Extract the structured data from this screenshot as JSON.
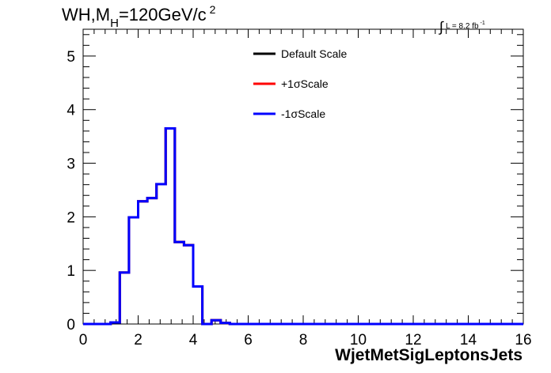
{
  "header": {
    "title_prefix": "WH,M",
    "title_subscript": "H",
    "title_value": "=120GeV/c",
    "title_superscript": "2",
    "lumi_text": "L = 8.2 fb",
    "lumi_superscript": "-1"
  },
  "chart_data": {
    "type": "line",
    "title": "WH,M_H=120GeV/c^2",
    "xlabel": "WjetMetSigLeptonsJets",
    "ylabel": "",
    "xlim": [
      0,
      16
    ],
    "ylim": [
      0,
      5.5
    ],
    "xticks": [
      0,
      2,
      4,
      6,
      8,
      10,
      12,
      14,
      16
    ],
    "yticks": [
      0,
      1,
      2,
      3,
      4,
      5
    ],
    "grid": false,
    "legend_position": "top-center",
    "bin_width": 0.3333,
    "series": [
      {
        "name": "Default Scale",
        "color": "#000000",
        "bin_edges": [
          0,
          1.0,
          1.3333,
          1.6667,
          2.0,
          2.3333,
          2.6667,
          3.0,
          3.3333,
          3.6667,
          4.0,
          4.3333,
          4.6667,
          5.0,
          5.3333,
          16
        ],
        "values": [
          0,
          0.03,
          0.96,
          1.99,
          2.29,
          2.35,
          2.61,
          3.65,
          1.53,
          1.47,
          0.7,
          0,
          0.07,
          0.02,
          0
        ]
      },
      {
        "name": "+1σScale",
        "color": "#ff0000",
        "bin_edges": [
          0,
          1.0,
          1.3333,
          1.6667,
          2.0,
          2.3333,
          2.6667,
          3.0,
          3.3333,
          3.6667,
          4.0,
          4.3333,
          4.6667,
          5.0,
          5.3333,
          16
        ],
        "values": [
          0,
          0.03,
          0.96,
          1.99,
          2.29,
          2.35,
          2.61,
          3.65,
          1.53,
          1.47,
          0.7,
          0,
          0.07,
          0.02,
          0
        ]
      },
      {
        "name": "-1σScale",
        "color": "#0000ff",
        "bin_edges": [
          0,
          1.0,
          1.3333,
          1.6667,
          2.0,
          2.3333,
          2.6667,
          3.0,
          3.3333,
          3.6667,
          4.0,
          4.3333,
          4.6667,
          5.0,
          5.3333,
          16
        ],
        "values": [
          0,
          0.03,
          0.96,
          1.99,
          2.29,
          2.35,
          2.61,
          3.65,
          1.53,
          1.47,
          0.7,
          0,
          0.07,
          0.02,
          0
        ]
      }
    ]
  }
}
